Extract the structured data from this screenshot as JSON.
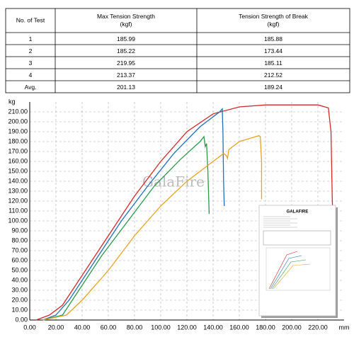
{
  "table": {
    "headers": [
      [
        "No. of Test"
      ],
      [
        "Max Tension Strength",
        "(kgf)"
      ],
      [
        "Tension Strength of Break",
        "(kgf)"
      ]
    ],
    "rows": [
      [
        "1",
        "185.99",
        "185.88"
      ],
      [
        "2",
        "185.22",
        "173.44"
      ],
      [
        "3",
        "219.95",
        "185.11"
      ],
      [
        "4",
        "213.37",
        "212.52"
      ],
      [
        "Avg.",
        "201.13",
        "189.24"
      ]
    ]
  },
  "chart_data": {
    "type": "line",
    "y_label": "kg",
    "x_label": "mm",
    "watermark": "GalaFire",
    "inset_title": "GALAFIRE",
    "grid": true,
    "xlim": [
      0,
      240
    ],
    "ylim": [
      0,
      220
    ],
    "xticks": [
      {
        "value": 0,
        "label": "0.00"
      },
      {
        "value": 20,
        "label": "20.00"
      },
      {
        "value": 40,
        "label": "40.00"
      },
      {
        "value": 60,
        "label": "60.00"
      },
      {
        "value": 80,
        "label": "80.00"
      },
      {
        "value": 100,
        "label": "100.00"
      },
      {
        "value": 120,
        "label": "120.00"
      },
      {
        "value": 140,
        "label": "140.00"
      },
      {
        "value": 160,
        "label": "160.00"
      },
      {
        "value": 180,
        "label": "180.00"
      },
      {
        "value": 200,
        "label": "200.00"
      },
      {
        "value": 220,
        "label": "220.00"
      }
    ],
    "yticks": [
      {
        "value": 0,
        "label": "0.00"
      },
      {
        "value": 10,
        "label": "10.00"
      },
      {
        "value": 20,
        "label": "20.00"
      },
      {
        "value": 30,
        "label": "30.00"
      },
      {
        "value": 40,
        "label": "40.00"
      },
      {
        "value": 50,
        "label": "50.00"
      },
      {
        "value": 60,
        "label": "60.00"
      },
      {
        "value": 70,
        "label": "70.00"
      },
      {
        "value": 80,
        "label": "80.00"
      },
      {
        "value": 90,
        "label": "90.00"
      },
      {
        "value": 100,
        "label": "100.00"
      },
      {
        "value": 110,
        "label": "110.00"
      },
      {
        "value": 120,
        "label": "120.00"
      },
      {
        "value": 130,
        "label": "130.00"
      },
      {
        "value": 140,
        "label": "140.00"
      },
      {
        "value": 150,
        "label": "150.00"
      },
      {
        "value": 160,
        "label": "160.00"
      },
      {
        "value": 170,
        "label": "170.00"
      },
      {
        "value": 180,
        "label": "180.00"
      },
      {
        "value": 190,
        "label": "190.00"
      },
      {
        "value": 200,
        "label": "200.00"
      },
      {
        "value": 210,
        "label": "210.00"
      }
    ],
    "series": [
      {
        "color": "#d62728",
        "x": [
          5,
          15,
          25,
          40,
          60,
          80,
          100,
          120,
          140,
          160,
          180,
          200,
          220,
          228,
          230,
          231,
          232
        ],
        "values": [
          0,
          5,
          15,
          45,
          85,
          125,
          160,
          190,
          208,
          215,
          217,
          217,
          217,
          214,
          190,
          120,
          90
        ]
      },
      {
        "color": "#1f6fbf",
        "x": [
          10,
          20,
          30,
          50,
          70,
          90,
          110,
          130,
          145,
          147,
          147.5,
          148,
          148.5
        ],
        "values": [
          0,
          5,
          20,
          60,
          100,
          135,
          168,
          195,
          210,
          213,
          190,
          140,
          115
        ]
      },
      {
        "color": "#2a9a4a",
        "x": [
          10,
          25,
          35,
          55,
          75,
          95,
          115,
          130,
          133,
          134,
          135,
          136,
          137
        ],
        "values": [
          0,
          5,
          25,
          65,
          100,
          135,
          162,
          180,
          185,
          175,
          178,
          150,
          107
        ]
      },
      {
        "color": "#e8a321",
        "x": [
          10,
          28,
          40,
          60,
          80,
          100,
          120,
          140,
          148,
          150,
          151,
          152,
          160,
          175,
          176,
          177,
          177
        ],
        "values": [
          0,
          5,
          20,
          50,
          85,
          115,
          140,
          160,
          168,
          166,
          163,
          172,
          180,
          186,
          185,
          160,
          122
        ]
      }
    ]
  }
}
